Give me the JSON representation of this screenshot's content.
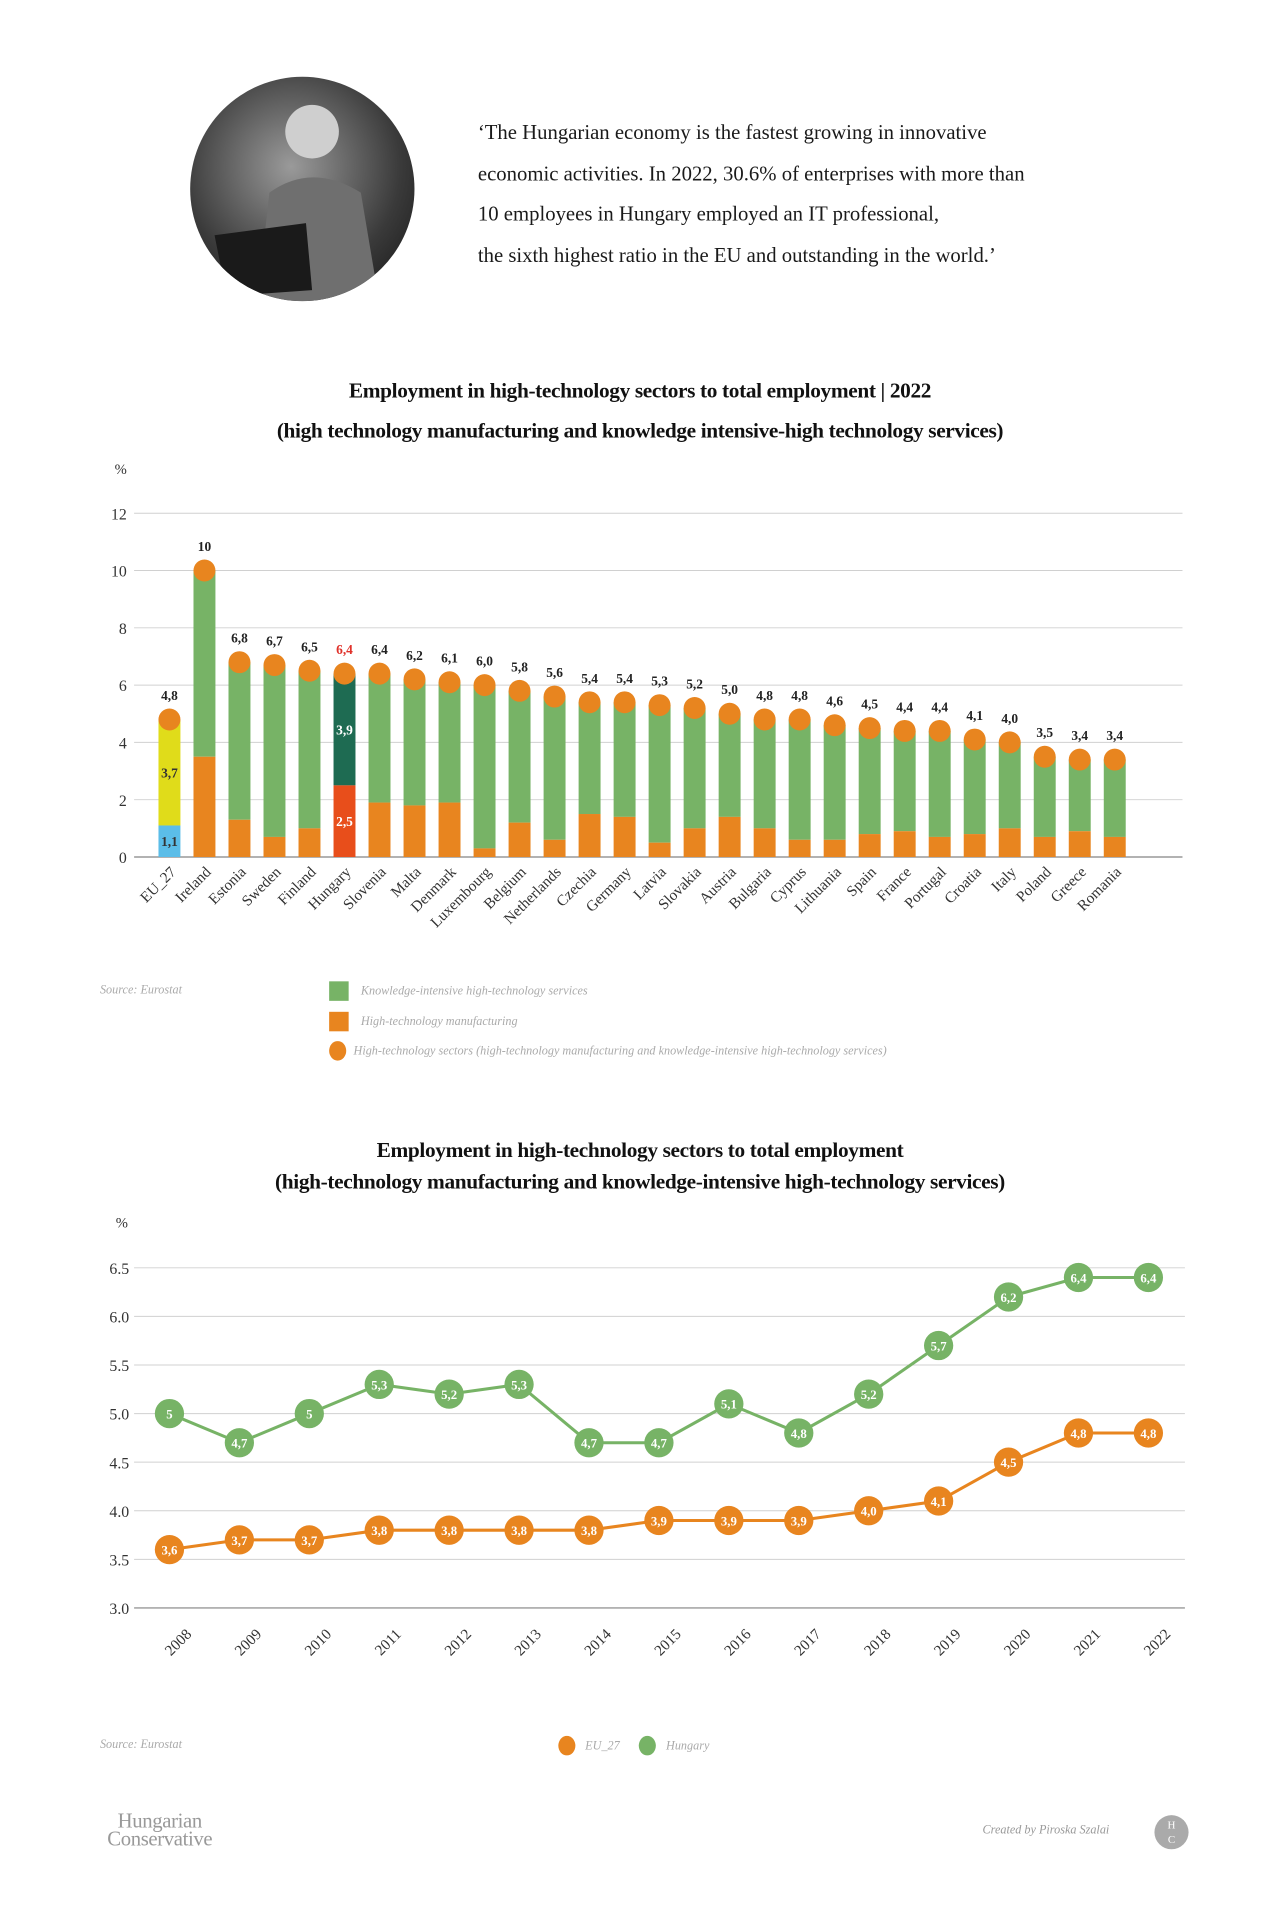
{
  "quote": {
    "lines": [
      "‘The Hungarian economy is the fastest growing in innovative",
      "economic activities. In 2022, 30.6% of enterprises with more than",
      "10 employees in Hungary employed an IT professional,",
      "the sixth highest ratio in the EU and outstanding in the world.’"
    ]
  },
  "footer": {
    "logo_line1": "Hungarian",
    "logo_line2": "Conservative",
    "credit": "Created by Piroska Szalai",
    "badge_top": "H",
    "badge_bottom": "C"
  },
  "colors": {
    "services": "#77b366",
    "manufacturing": "#e8851f",
    "eu_services": "#e0dc1a",
    "eu_manufacturing": "#5bbde8",
    "hu_services": "#1e6b52",
    "hu_manufacturing": "#e84e1b",
    "hu_label": "#e0322b",
    "eu_line": "#e8851f",
    "hu_line": "#77b366",
    "grid": "#d0d0d0"
  },
  "chart_data": [
    {
      "type": "bar",
      "stacked": true,
      "title": "Employment in high-technology sectors to total employment | 2022",
      "subtitle": "(high technology manufacturing and knowledge intensive-high technology services)",
      "ylabel": "%",
      "ylim": [
        0,
        12
      ],
      "yticks": [
        "0",
        "2",
        "4",
        "6",
        "8",
        "10",
        "12"
      ],
      "grid": true,
      "source": "Source: Eurostat",
      "legend": [
        "Knowledge-intensive high-technology services",
        "High-technology manufacturing",
        "High-technology sectors (high-technology manufacturing and knowledge-intensive high-technology services)"
      ],
      "categories": [
        "EU_27",
        "Ireland",
        "Estonia",
        "Sweden",
        "Finland",
        "Hungary",
        "Slovenia",
        "Malta",
        "Denmark",
        "Luxembourg",
        "Belgium",
        "Netherlands",
        "Czechia",
        "Germany",
        "Latvia",
        "Slovakia",
        "Austria",
        "Bulgaria",
        "Cyprus",
        "Lithuania",
        "Spain",
        "France",
        "Portugal",
        "Croatia",
        "Italy",
        "Poland",
        "Greece",
        "Romania"
      ],
      "total": [
        4.8,
        10,
        6.8,
        6.7,
        6.5,
        6.4,
        6.4,
        6.2,
        6.1,
        6.0,
        5.8,
        5.6,
        5.4,
        5.4,
        5.3,
        5.2,
        5.0,
        4.8,
        4.8,
        4.6,
        4.5,
        4.4,
        4.4,
        4.1,
        4.0,
        3.5,
        3.4,
        3.4
      ],
      "total_labels": [
        "4,8",
        "10",
        "6,8",
        "6,7",
        "6,5",
        "6,4",
        "6,4",
        "6,2",
        "6,1",
        "6,0",
        "5,8",
        "5,6",
        "5,4",
        "5,4",
        "5,3",
        "5,2",
        "5,0",
        "4,8",
        "4,8",
        "4,6",
        "4,5",
        "4,4",
        "4,4",
        "4,1",
        "4,0",
        "3,5",
        "3,4",
        "3,4"
      ],
      "series": [
        {
          "name": "High-technology manufacturing",
          "values": [
            1.1,
            3.5,
            1.3,
            0.7,
            1.0,
            2.5,
            1.9,
            1.8,
            1.9,
            0.3,
            1.2,
            0.6,
            1.5,
            1.4,
            0.5,
            1.0,
            1.4,
            1.0,
            0.6,
            0.6,
            0.8,
            0.9,
            0.7,
            0.8,
            1.0,
            0.7,
            0.9,
            0.7
          ]
        },
        {
          "name": "Knowledge-intensive high-technology services",
          "values": [
            3.7,
            6.5,
            5.5,
            6.0,
            5.5,
            3.9,
            4.5,
            4.4,
            4.2,
            5.7,
            4.6,
            5.0,
            3.9,
            4.0,
            4.8,
            4.2,
            3.6,
            3.8,
            4.2,
            4.0,
            3.7,
            3.5,
            3.7,
            3.3,
            3.0,
            2.8,
            2.5,
            2.7
          ]
        }
      ],
      "segment_labels": {
        "EU_27": {
          "manufacturing": "1,1",
          "services": "3,7"
        },
        "Hungary": {
          "manufacturing": "2,5",
          "services": "3,9"
        }
      }
    },
    {
      "type": "line",
      "title": "Employment in high-technology sectors to total employment",
      "subtitle": "(high-technology manufacturing and knowledge-intensive high-technology services)",
      "ylabel": "%",
      "ylim": [
        3.0,
        6.5
      ],
      "yticks": [
        "3.0",
        "3.5",
        "4.0",
        "4.5",
        "5.0",
        "5.5",
        "6.0",
        "6.5"
      ],
      "grid": true,
      "source": "Source: Eurostat",
      "legend_position": "bottom",
      "x": [
        "2008",
        "2009",
        "2010",
        "2011",
        "2012",
        "2013",
        "2014",
        "2015",
        "2016",
        "2017",
        "2018",
        "2019",
        "2020",
        "2021",
        "2022"
      ],
      "series": [
        {
          "name": "EU_27",
          "values": [
            3.6,
            3.7,
            3.7,
            3.8,
            3.8,
            3.8,
            3.8,
            3.9,
            3.9,
            3.9,
            4.0,
            4.1,
            4.5,
            4.8,
            4.8
          ],
          "labels": [
            "3,6",
            "3,7",
            "3,7",
            "3,8",
            "3,8",
            "3,8",
            "3,8",
            "3,9",
            "3,9",
            "3,9",
            "4,0",
            "4,1",
            "4,5",
            "4,8",
            "4,8"
          ]
        },
        {
          "name": "Hungary",
          "values": [
            5.0,
            4.7,
            5.0,
            5.3,
            5.2,
            5.3,
            4.7,
            4.7,
            5.1,
            4.8,
            5.2,
            5.7,
            6.2,
            6.4,
            6.4
          ],
          "labels": [
            "5",
            "4,7",
            "5",
            "5,3",
            "5,2",
            "5,3",
            "4,7",
            "4,7",
            "5,1",
            "4,8",
            "5,2",
            "5,7",
            "6,2",
            "6,4",
            "6,4"
          ]
        }
      ]
    }
  ]
}
